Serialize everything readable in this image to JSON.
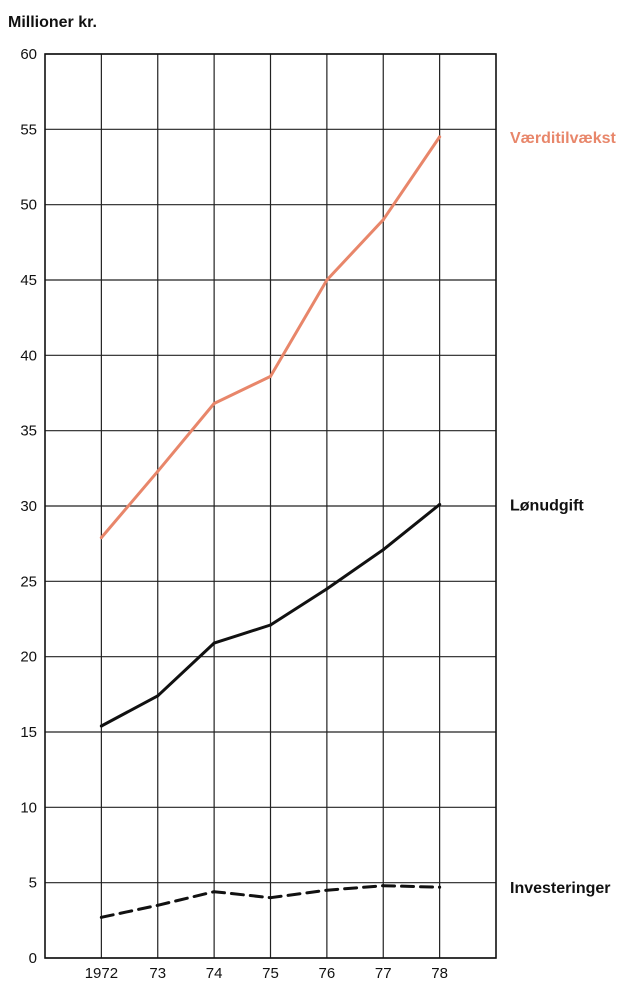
{
  "chart_data": {
    "type": "line",
    "ylabel": "Millioner kr.",
    "xlabel": "",
    "x_tick_labels": [
      "1972",
      "73",
      "74",
      "75",
      "76",
      "77",
      "78"
    ],
    "y_tick_labels": [
      "0",
      "5",
      "10",
      "15",
      "20",
      "25",
      "30",
      "35",
      "40",
      "45",
      "50",
      "55",
      "60"
    ],
    "x": [
      1972,
      1973,
      1974,
      1975,
      1976,
      1977,
      1978
    ],
    "ylim": [
      0,
      60
    ],
    "xlim": [
      1971,
      1979
    ],
    "grid": true,
    "legend": "labels at right end of each line",
    "series": [
      {
        "name": "Værditilvækst",
        "color": "#e8866a",
        "style": "solid",
        "values": [
          27.9,
          32.3,
          36.8,
          38.6,
          45.0,
          49.0,
          54.5
        ]
      },
      {
        "name": "Lønudgift",
        "color": "#111111",
        "style": "solid",
        "values": [
          15.4,
          17.4,
          20.9,
          22.1,
          24.5,
          27.1,
          30.1
        ]
      },
      {
        "name": "Investeringer",
        "color": "#111111",
        "style": "dashed",
        "values": [
          2.7,
          3.5,
          4.4,
          4.0,
          4.5,
          4.8,
          4.7
        ]
      }
    ]
  }
}
